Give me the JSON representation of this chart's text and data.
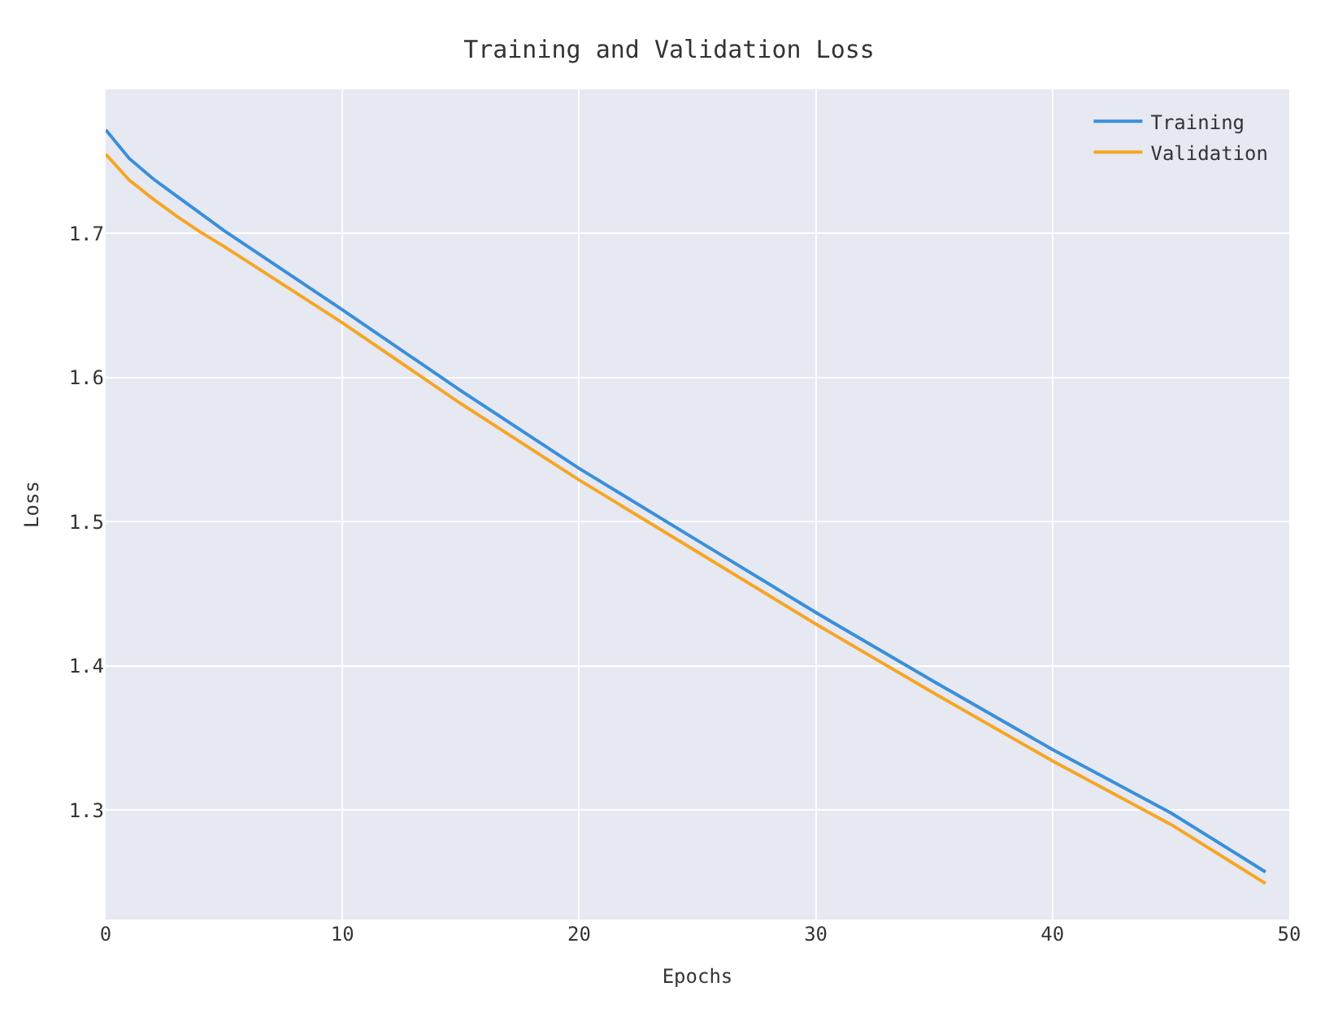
{
  "chart_data": {
    "type": "line",
    "title": "Training and Validation Loss",
    "xlabel": "Epochs",
    "ylabel": "Loss",
    "x": [
      0,
      1,
      2,
      3,
      4,
      5,
      10,
      15,
      20,
      25,
      30,
      35,
      40,
      45,
      49
    ],
    "series": [
      {
        "name": "Training",
        "color": "#3a8fd9",
        "values": [
          1.772,
          1.752,
          1.738,
          1.726,
          1.714,
          1.702,
          1.647,
          1.591,
          1.537,
          1.487,
          1.437,
          1.389,
          1.342,
          1.298,
          1.257
        ]
      },
      {
        "name": "Validation",
        "color": "#f5a623",
        "values": [
          1.755,
          1.737,
          1.724,
          1.712,
          1.701,
          1.691,
          1.638,
          1.582,
          1.529,
          1.479,
          1.429,
          1.381,
          1.334,
          1.29,
          1.249
        ]
      }
    ],
    "xlim": [
      0,
      50
    ],
    "xticks": [
      0,
      10,
      20,
      30,
      40,
      50
    ],
    "ylim": [
      1.224,
      1.8
    ],
    "yticks": [
      1.3,
      1.4,
      1.5,
      1.6,
      1.7
    ],
    "grid": true,
    "legend": "top right",
    "marker": "none",
    "line_style": "solid"
  }
}
